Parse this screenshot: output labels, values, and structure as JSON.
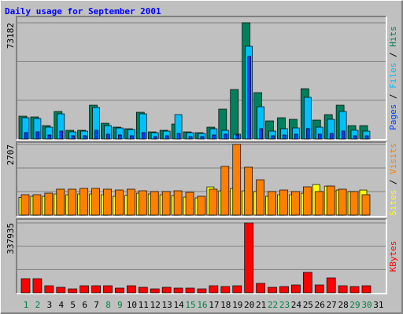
{
  "title": "Daily usage for September 2001",
  "categories": [
    "1",
    "2",
    "3",
    "4",
    "5",
    "6",
    "7",
    "8",
    "9",
    "10",
    "11",
    "12",
    "13",
    "14",
    "15",
    "16",
    "17",
    "18",
    "19",
    "20",
    "21",
    "22",
    "23",
    "24",
    "25",
    "26",
    "27",
    "28",
    "29",
    "30",
    "31"
  ],
  "category_colors": [
    "#008040",
    "#008040",
    "#000000",
    "#000000",
    "#000000",
    "#000000",
    "#000000",
    "#008040",
    "#008040",
    "#000000",
    "#000000",
    "#000000",
    "#000000",
    "#000000",
    "#008040",
    "#008040",
    "#000000",
    "#000000",
    "#000000",
    "#000000",
    "#000000",
    "#008040",
    "#008040",
    "#000000",
    "#000000",
    "#000000",
    "#000000",
    "#000000",
    "#008040",
    "#008040",
    "#000000"
  ],
  "legend_separator": " / ",
  "chart_data": [
    {
      "type": "bar",
      "ylim": [
        0,
        73182
      ],
      "yticks": [
        73182
      ],
      "series": [
        {
          "name": "Hits",
          "color": "#00805c",
          "values": [
            14340,
            13845,
            8400,
            17300,
            5440,
            5440,
            21260,
            9890,
            7420,
            6430,
            16810,
            4450,
            5440,
            9390,
            4450,
            3960,
            7420,
            18790,
            31150,
            73182,
            29170,
            11370,
            13350,
            12360,
            31650,
            11870,
            15330,
            21260,
            8400,
            8400,
            0
          ]
        },
        {
          "name": "Files",
          "color": "#00c0ff",
          "values": [
            13350,
            12860,
            7420,
            15820,
            4450,
            4940,
            19780,
            8400,
            6920,
            5930,
            15820,
            3960,
            4940,
            15330,
            3960,
            3460,
            6430,
            5440,
            2970,
            58350,
            20270,
            4940,
            6430,
            6920,
            26210,
            7420,
            12360,
            17300,
            5440,
            4940,
            0
          ]
        },
        {
          "name": "Pages",
          "color": "#0040ff",
          "values": [
            4000,
            4500,
            2500,
            5000,
            2000,
            2000,
            5500,
            3000,
            2500,
            2000,
            4000,
            1500,
            2000,
            3500,
            1500,
            1500,
            2500,
            3000,
            2500,
            52000,
            6500,
            2000,
            2500,
            3000,
            6500,
            3000,
            3500,
            5000,
            2000,
            2000,
            0
          ]
        }
      ]
    },
    {
      "type": "bar",
      "ylim": [
        0,
        2707
      ],
      "yticks": [
        2707
      ],
      "series": [
        {
          "name": "Visits",
          "color": "#ff8000",
          "values": [
            782,
            782,
            842,
            993,
            993,
            1023,
            1023,
            993,
            962,
            993,
            932,
            902,
            902,
            932,
            872,
            722,
            993,
            1865,
            2707,
            1835,
            1353,
            902,
            962,
            902,
            1083,
            902,
            1113,
            993,
            902,
            782,
            0
          ]
        },
        {
          "name": "Sites",
          "color": "#ffff00",
          "values": [
            680,
            720,
            720,
            810,
            780,
            810,
            810,
            780,
            720,
            750,
            840,
            810,
            780,
            750,
            690,
            660,
            1080,
            930,
            1020,
            930,
            900,
            720,
            780,
            780,
            840,
            1170,
            1110,
            960,
            900,
            960,
            0
          ]
        }
      ]
    },
    {
      "type": "bar",
      "ylim": [
        0,
        337935
      ],
      "yticks": [
        337935
      ],
      "series": [
        {
          "name": "KBytes",
          "color": "#ff0000",
          "values": [
            68350,
            68350,
            34170,
            26580,
            18985,
            34170,
            34170,
            34170,
            22780,
            34170,
            26580,
            18985,
            26580,
            22780,
            22780,
            18985,
            34170,
            30375,
            34170,
            337935,
            45560,
            26580,
            30375,
            37970,
            98720,
            37970,
            72140,
            34170,
            30375,
            34170,
            0
          ]
        }
      ]
    }
  ]
}
